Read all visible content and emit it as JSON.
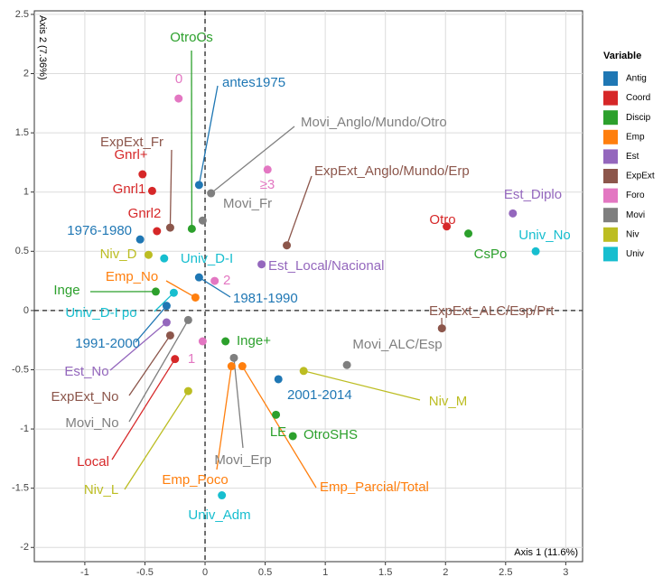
{
  "chart_data": {
    "type": "scatter",
    "x_label": "Axis 1 (11.6%)",
    "y_label": "Axis 2 (7.36%)",
    "legend_title": "Variable",
    "xlim": [
      -1.42,
      3.14
    ],
    "ylim": [
      -2.12,
      2.53
    ],
    "xticks": [
      -1,
      -0.5,
      0,
      0.5,
      1,
      1.5,
      2,
      2.5,
      3
    ],
    "yticks": [
      -2,
      -1.5,
      -1,
      -0.5,
      0,
      0.5,
      1,
      1.5,
      2,
      2.5
    ],
    "grid": true,
    "hline": 0,
    "vline": 0,
    "legend": "right",
    "series": [
      {
        "name": "Antig",
        "color": "#1f77b4",
        "labels": [
          "antes1975",
          "1976-1980",
          "1981-1990",
          "1991-2000",
          "2001-2014"
        ],
        "x": [
          -0.05,
          -0.54,
          -0.05,
          -0.32,
          0.61
        ],
        "values": [
          1.06,
          0.6,
          0.28,
          0.04,
          -0.58
        ]
      },
      {
        "name": "Coord",
        "color": "#d62728",
        "labels": [
          "Gnrl+",
          "Gnrl1",
          "Gnrl2",
          "Otro",
          "Local"
        ],
        "x": [
          -0.52,
          -0.44,
          -0.4,
          2.01,
          -0.25
        ],
        "values": [
          1.15,
          1.01,
          0.67,
          0.71,
          -0.41
        ]
      },
      {
        "name": "Discip",
        "color": "#2ca02c",
        "labels": [
          "OtroCs",
          "Inge",
          "Inge+",
          "LE",
          "OtroSHS",
          "CsPo"
        ],
        "x": [
          -0.11,
          -0.41,
          0.17,
          0.59,
          0.73,
          2.19
        ],
        "values": [
          0.69,
          0.16,
          -0.26,
          -0.88,
          -1.06,
          0.65
        ]
      },
      {
        "name": "Emp",
        "color": "#ff7f0e",
        "labels": [
          "Emp_No",
          "Emp_Poco",
          "Emp_Parcial/Total"
        ],
        "x": [
          -0.08,
          0.22,
          0.31
        ],
        "values": [
          0.11,
          -0.47,
          -0.47
        ]
      },
      {
        "name": "Est",
        "color": "#9467bd",
        "labels": [
          "Est_Diplo",
          "Est_Local/Nacional",
          "Est_No"
        ],
        "x": [
          2.56,
          0.47,
          -0.32
        ],
        "values": [
          0.82,
          0.39,
          -0.1
        ]
      },
      {
        "name": "ExpExt",
        "color": "#8c564b",
        "labels": [
          "ExpExt_Fr",
          "ExpExt_Anglo/Mundo/Erp",
          "ExpExt_ALC/Esp/Prt",
          "ExpExt_No"
        ],
        "x": [
          -0.29,
          0.68,
          1.97,
          -0.29
        ],
        "values": [
          0.7,
          0.55,
          -0.15,
          -0.21
        ]
      },
      {
        "name": "Foro",
        "color": "#e377c2",
        "labels": [
          "0",
          "≥3",
          "2",
          "1"
        ],
        "x": [
          -0.22,
          0.52,
          0.08,
          -0.02
        ],
        "values": [
          1.79,
          1.19,
          0.25,
          -0.26
        ]
      },
      {
        "name": "Movi",
        "color": "#7f7f7f",
        "labels": [
          "Movi_Anglo/Mundo/Otro",
          "Movi_Fr",
          "Movi_ALC/Esp",
          "Movi_No",
          "Movi_Erp"
        ],
        "x": [
          0.05,
          -0.02,
          1.18,
          -0.14,
          0.24
        ],
        "values": [
          0.99,
          0.76,
          -0.46,
          -0.08,
          -0.4
        ]
      },
      {
        "name": "Niv",
        "color": "#bcbd22",
        "labels": [
          "Niv_D",
          "Niv_M",
          "Niv_L"
        ],
        "x": [
          -0.47,
          0.82,
          -0.14
        ],
        "values": [
          0.47,
          -0.51,
          -0.68
        ]
      },
      {
        "name": "Univ",
        "color": "#17becf",
        "labels": [
          "Univ_D-I",
          "Univ_No",
          "Univ_D-I po",
          "Univ_Adm"
        ],
        "x": [
          -0.34,
          2.75,
          -0.26,
          0.14
        ],
        "values": [
          0.44,
          0.5,
          0.15,
          -1.56
        ]
      }
    ]
  }
}
